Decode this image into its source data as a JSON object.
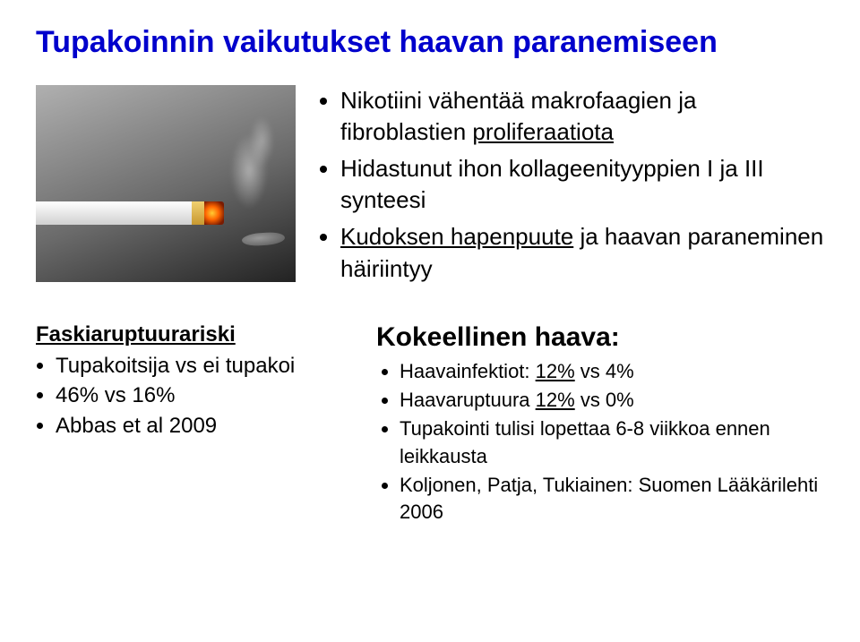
{
  "title": "Tupakoinnin vaikutukset haavan paranemiseen",
  "topList": {
    "item1_a": "Nikotiini vähentää makrofaagien ja fibroblastien ",
    "item1_b": "proliferaatiota",
    "item2": "Hidastunut ihon kollageenityyppien I ja III synteesi",
    "item3_a": "Kudoksen hapenpuute",
    "item3_b": " ja haavan paraneminen häiriintyy"
  },
  "left": {
    "heading": "Faskiaruptuurariski",
    "item1": "Tupakoitsija vs ei tupakoi",
    "item2": "46% vs 16%",
    "item3": "Abbas et al 2009"
  },
  "right": {
    "heading": "Kokeellinen haava:",
    "item1_a": "Haavainfektiot: ",
    "item1_b": "12%",
    "item1_c": " vs 4%",
    "item2_a": "Haavaruptuura ",
    "item2_b": "12%",
    "item2_c": " vs 0%",
    "item3": "Tupakointi tulisi lopettaa 6-8 viikkoa ennen leikkausta",
    "item4": "Koljonen, Patja, Tukiainen: Suomen Lääkärilehti 2006"
  }
}
